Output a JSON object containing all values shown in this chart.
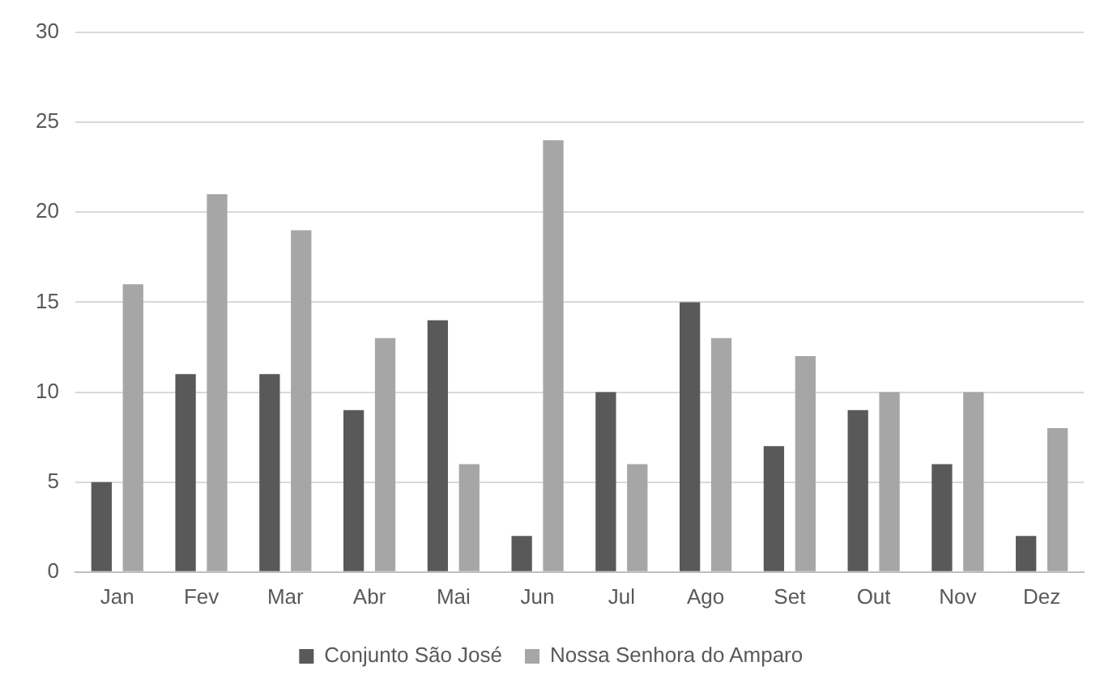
{
  "chart_data": {
    "type": "bar",
    "categories": [
      "Jan",
      "Fev",
      "Mar",
      "Abr",
      "Mai",
      "Jun",
      "Jul",
      "Ago",
      "Set",
      "Out",
      "Nov",
      "Dez"
    ],
    "series": [
      {
        "name": "Conjunto São José",
        "color": "#595959",
        "values": [
          5,
          11,
          11,
          9,
          14,
          2,
          10,
          15,
          7,
          9,
          6,
          2
        ]
      },
      {
        "name": "Nossa Senhora do Amparo",
        "color": "#a6a6a6",
        "values": [
          16,
          21,
          19,
          13,
          6,
          24,
          6,
          13,
          12,
          10,
          10,
          8
        ]
      }
    ],
    "ylim": [
      0,
      30
    ],
    "yticks": [
      0,
      5,
      10,
      15,
      20,
      25,
      30
    ],
    "grid": "y",
    "legend": "bottom"
  }
}
